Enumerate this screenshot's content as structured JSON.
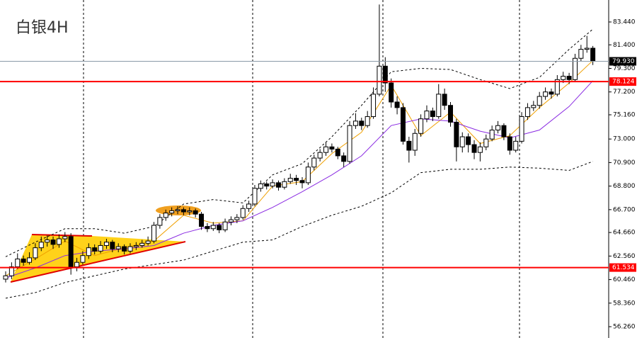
{
  "chart_data": {
    "type": "candlestick",
    "title": "白银4H",
    "ylim": [
      55.25,
      85.4
    ],
    "yticks": [
      {
        "value": 83.44,
        "label": "83.440"
      },
      {
        "value": 81.4,
        "label": "81.400"
      },
      {
        "value": 79.3,
        "label": "79.300"
      },
      {
        "value": 77.2,
        "label": "77.200"
      },
      {
        "value": 75.16,
        "label": "75.160"
      },
      {
        "value": 73,
        "label": "73.000"
      },
      {
        "value": 70.9,
        "label": "70.900"
      },
      {
        "value": 68.8,
        "label": "68.800"
      },
      {
        "value": 66.7,
        "label": "66.700"
      },
      {
        "value": 64.66,
        "label": "64.660"
      },
      {
        "value": 62.56,
        "label": "62.560"
      },
      {
        "value": 60.46,
        "label": "60.460"
      },
      {
        "value": 58.36,
        "label": "58.360"
      },
      {
        "value": 56.26,
        "label": "56.260"
      }
    ],
    "candles": [
      [
        60.5,
        61.2,
        60.2,
        60.8
      ],
      [
        60.8,
        62.0,
        60.5,
        61.6
      ],
      [
        61.6,
        62.8,
        61.4,
        62.3
      ],
      [
        62.3,
        62.6,
        61.7,
        62.0
      ],
      [
        62.0,
        62.9,
        61.8,
        62.4
      ],
      [
        62.4,
        63.7,
        62.2,
        63.3
      ],
      [
        63.3,
        64.3,
        63.0,
        63.8
      ],
      [
        63.8,
        64.4,
        63.4,
        64.0
      ],
      [
        64.0,
        64.3,
        63.2,
        63.6
      ],
      [
        63.6,
        64.5,
        63.3,
        64.1
      ],
      [
        64.1,
        64.7,
        63.8,
        64.3
      ],
      [
        64.3,
        64.6,
        60.9,
        61.6
      ],
      [
        61.6,
        62.4,
        61.2,
        62.0
      ],
      [
        62.0,
        63.0,
        61.8,
        62.6
      ],
      [
        62.6,
        63.7,
        62.3,
        63.3
      ],
      [
        63.3,
        63.6,
        62.7,
        63.0
      ],
      [
        63.0,
        63.9,
        62.8,
        63.5
      ],
      [
        63.5,
        64.1,
        63.2,
        63.8
      ],
      [
        63.8,
        64.0,
        62.9,
        63.2
      ],
      [
        63.2,
        63.7,
        62.9,
        63.4
      ],
      [
        63.4,
        63.6,
        62.7,
        63.0
      ],
      [
        63.0,
        63.7,
        62.8,
        63.4
      ],
      [
        63.4,
        63.8,
        63.1,
        63.5
      ],
      [
        63.5,
        64.0,
        63.3,
        63.7
      ],
      [
        63.7,
        64.3,
        63.5,
        63.9
      ],
      [
        63.9,
        65.6,
        63.7,
        65.3
      ],
      [
        65.3,
        66.3,
        65.0,
        66.0
      ],
      [
        66.0,
        66.7,
        65.7,
        66.4
      ],
      [
        66.4,
        66.9,
        66.1,
        66.6
      ],
      [
        66.6,
        67.0,
        66.3,
        66.7
      ],
      [
        66.7,
        66.9,
        66.2,
        66.5
      ],
      [
        66.5,
        66.9,
        66.2,
        66.6
      ],
      [
        66.6,
        66.8,
        66.0,
        66.3
      ],
      [
        66.3,
        66.5,
        64.9,
        65.2
      ],
      [
        65.2,
        65.5,
        64.7,
        65.0
      ],
      [
        65.0,
        65.6,
        64.8,
        65.3
      ],
      [
        65.3,
        65.5,
        64.6,
        64.9
      ],
      [
        64.9,
        65.9,
        64.7,
        65.6
      ],
      [
        65.6,
        66.1,
        65.3,
        65.8
      ],
      [
        65.8,
        66.3,
        65.5,
        66.0
      ],
      [
        66.0,
        67.1,
        65.8,
        66.8
      ],
      [
        66.8,
        67.5,
        66.5,
        67.2
      ],
      [
        67.2,
        68.9,
        67.0,
        68.6
      ],
      [
        68.6,
        69.3,
        68.3,
        69.0
      ],
      [
        69.0,
        69.2,
        68.5,
        68.8
      ],
      [
        68.8,
        69.4,
        68.6,
        69.1
      ],
      [
        69.1,
        69.3,
        68.4,
        68.7
      ],
      [
        68.7,
        69.5,
        68.5,
        69.2
      ],
      [
        69.2,
        69.9,
        69.0,
        69.5
      ],
      [
        69.5,
        69.8,
        68.9,
        69.3
      ],
      [
        69.3,
        69.6,
        68.6,
        69.1
      ],
      [
        69.1,
        70.9,
        68.9,
        70.5
      ],
      [
        70.5,
        71.6,
        70.2,
        71.3
      ],
      [
        71.3,
        72.1,
        71.0,
        71.8
      ],
      [
        71.8,
        72.7,
        71.5,
        72.3
      ],
      [
        72.3,
        72.6,
        71.8,
        72.1
      ],
      [
        72.1,
        72.3,
        71.2,
        71.5
      ],
      [
        71.5,
        71.8,
        70.5,
        71.0
      ],
      [
        71.0,
        74.6,
        70.8,
        74.2
      ],
      [
        74.2,
        75.3,
        73.9,
        74.6
      ],
      [
        74.6,
        74.9,
        73.8,
        74.2
      ],
      [
        74.2,
        75.5,
        74.0,
        75.0
      ],
      [
        75.0,
        77.6,
        74.8,
        77.0
      ],
      [
        77.0,
        85.0,
        76.8,
        79.5
      ],
      [
        79.5,
        80.3,
        77.2,
        78.0
      ],
      [
        78.0,
        78.4,
        75.8,
        76.3
      ],
      [
        76.3,
        76.8,
        75.2,
        75.8
      ],
      [
        75.8,
        76.2,
        72.5,
        72.8
      ],
      [
        72.8,
        73.2,
        70.9,
        72.0
      ],
      [
        72.0,
        73.9,
        71.5,
        73.5
      ],
      [
        73.5,
        75.2,
        73.2,
        74.8
      ],
      [
        74.8,
        76.0,
        74.5,
        75.5
      ],
      [
        75.5,
        75.8,
        74.6,
        75.0
      ],
      [
        75.0,
        77.9,
        74.8,
        77.0
      ],
      [
        77.0,
        77.5,
        75.6,
        76.0
      ],
      [
        76.0,
        76.3,
        74.1,
        74.5
      ],
      [
        74.5,
        74.8,
        71.0,
        72.3
      ],
      [
        72.3,
        73.6,
        71.8,
        73.2
      ],
      [
        73.2,
        73.5,
        71.8,
        72.5
      ],
      [
        72.5,
        72.9,
        71.2,
        71.8
      ],
      [
        71.8,
        72.7,
        71.0,
        72.3
      ],
      [
        72.3,
        73.4,
        72.0,
        73.0
      ],
      [
        73.0,
        74.2,
        72.8,
        73.8
      ],
      [
        73.8,
        74.6,
        73.5,
        74.2
      ],
      [
        74.2,
        74.4,
        72.9,
        73.2
      ],
      [
        73.2,
        73.5,
        71.6,
        72.0
      ],
      [
        72.0,
        73.2,
        71.8,
        72.8
      ],
      [
        72.8,
        75.4,
        72.6,
        75.0
      ],
      [
        75.0,
        76.2,
        74.7,
        75.8
      ],
      [
        75.8,
        76.4,
        75.5,
        76.0
      ],
      [
        76.0,
        77.2,
        75.7,
        76.8
      ],
      [
        76.8,
        77.6,
        76.5,
        77.2
      ],
      [
        77.2,
        77.5,
        76.6,
        77.0
      ],
      [
        77.0,
        78.7,
        76.8,
        78.3
      ],
      [
        78.3,
        79.0,
        78.0,
        78.6
      ],
      [
        78.6,
        78.9,
        77.9,
        78.3
      ],
      [
        78.3,
        80.6,
        78.1,
        80.2
      ],
      [
        80.2,
        81.4,
        79.9,
        81.0
      ],
      [
        81.0,
        82.2,
        80.7,
        81.1
      ],
      [
        81.1,
        81.3,
        79.6,
        79.93
      ]
    ],
    "x": [
      0,
      5,
      10,
      15,
      20,
      25,
      30,
      35,
      40,
      45,
      50,
      55,
      60,
      65,
      70,
      75,
      80,
      85,
      90,
      95,
      99
    ],
    "series": [
      {
        "color": "#f0a000",
        "dash": false,
        "values": [
          60.8,
          62.3,
          63.9,
          62.6,
          63.3,
          63.9,
          66.2,
          65.5,
          65.7,
          68.8,
          69.2,
          71.7,
          73.6,
          77.8,
          73.3,
          75.4,
          72.6,
          73.3,
          75.8,
          78.0,
          80.0
        ]
      },
      {
        "color": "#8a2be2",
        "dash": false,
        "values": [
          60.6,
          61.5,
          62.6,
          63.0,
          63.2,
          63.5,
          64.6,
          65.3,
          65.7,
          66.9,
          68.3,
          69.8,
          71.5,
          74.2,
          74.8,
          74.6,
          73.7,
          73.1,
          73.8,
          75.9,
          78.2
        ]
      },
      {
        "color": "#000000",
        "dash": true,
        "values": [
          62.5,
          63.8,
          65.0,
          65.0,
          64.6,
          65.2,
          67.2,
          67.6,
          67.3,
          69.8,
          70.8,
          73.2,
          76.0,
          79.0,
          79.3,
          79.2,
          78.3,
          77.5,
          78.5,
          81.0,
          82.8
        ]
      },
      {
        "color": "#000000",
        "dash": true,
        "values": [
          58.8,
          59.3,
          60.2,
          60.8,
          61.4,
          61.8,
          62.2,
          63.0,
          63.8,
          64.0,
          65.2,
          66.2,
          67.0,
          68.2,
          70.0,
          70.3,
          70.3,
          70.5,
          70.4,
          70.2,
          71.0
        ]
      }
    ],
    "price_lines": [
      {
        "value": 79.93,
        "label": "79.930",
        "color": "#8a9aa8",
        "tag": "#000000"
      },
      {
        "value": 78.124,
        "label": "78.124",
        "color": "#ff0000",
        "tag": "#ff0000"
      },
      {
        "value": 61.534,
        "label": "61.534",
        "color": "#ff0000",
        "tag": "#ff0000"
      }
    ]
  }
}
